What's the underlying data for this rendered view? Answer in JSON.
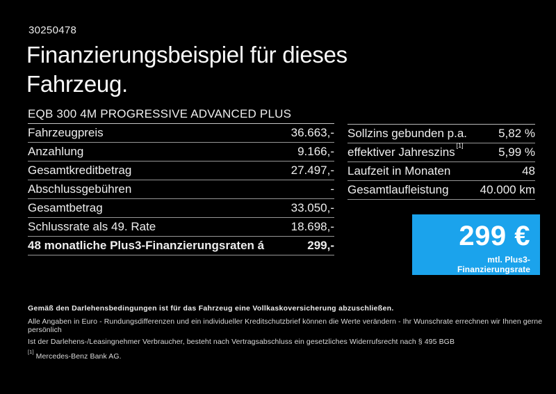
{
  "page": {
    "background": "#000000",
    "doc_number": "30250478"
  },
  "title": {
    "line1": "Finanzierungsbeispiel für dieses",
    "line2": "Fahrzeug."
  },
  "vehicle": {
    "model_line": "EQB 300 4M PROGRESSIVE ADVANCED PLUS"
  },
  "finance_table": {
    "rows": [
      {
        "label": "Fahrzeugpreis",
        "value": "36.663,-"
      },
      {
        "label": "Anzahlung",
        "value": "9.166,-"
      },
      {
        "label": "Gesamtkreditbetrag",
        "value": "27.497,-"
      },
      {
        "label": "Abschlussgebühren",
        "value": "-"
      },
      {
        "label": "Gesamtbetrag",
        "value": "33.050,-"
      },
      {
        "label": "Schlussrate als 49. Rate",
        "value": "18.698,-"
      },
      {
        "label": "48 monatliche Plus3-Finanzierungsraten á",
        "value": "299,-"
      }
    ]
  },
  "conditions_table": {
    "rows": [
      {
        "label": "Sollzins gebunden p.a.",
        "value": "5,82 %"
      },
      {
        "label": "effektiver Jahreszins",
        "footnote": "[1]",
        "value": "5,99 %"
      },
      {
        "label": "Laufzeit in Monaten",
        "value": "48"
      },
      {
        "label": "Gesamtlaufleistung",
        "value": "40.000 km"
      }
    ]
  },
  "rate_box": {
    "background": "#1BA3EC",
    "amount": "299 €",
    "caption": "mtl. Plus3-Finanzierungsrate"
  },
  "disclaimer": {
    "line1": "Gemäß den Darlehensbedingungen ist für das Fahrzeug eine Vollkaskoversicherung abzuschließen.",
    "line2": "Alle Angaben in Euro - Rundungsdifferenzen und ein individueller Kreditschutzbrief können die Werte verändern - Ihr Wunschrate errechnen wir Ihnen gerne persönlich",
    "line3": "Ist der Darlehens-/Leasingnehmer Verbraucher, besteht nach Vertragsabschluss ein gesetzliches Widerrufsrecht nach § 495 BGB",
    "footnote_marker": "[1]",
    "footnote_text": "Mercedes-Benz Bank AG."
  }
}
